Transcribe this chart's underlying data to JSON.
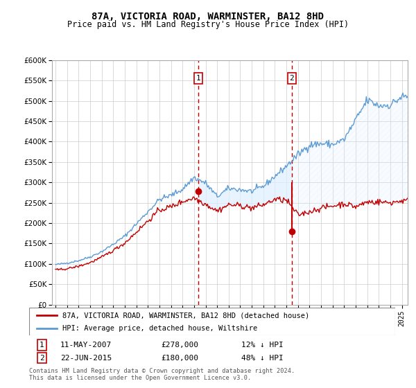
{
  "title": "87A, VICTORIA ROAD, WARMINSTER, BA12 8HD",
  "subtitle": "Price paid vs. HM Land Registry's House Price Index (HPI)",
  "hpi_label": "HPI: Average price, detached house, Wiltshire",
  "property_label": "87A, VICTORIA ROAD, WARMINSTER, BA12 8HD (detached house)",
  "annotation1": {
    "label": "1",
    "date": "11-MAY-2007",
    "price": 278000,
    "pct": "12% ↓ HPI"
  },
  "annotation2": {
    "label": "2",
    "date": "22-JUN-2015",
    "price": 180000,
    "pct": "48% ↓ HPI"
  },
  "footer": "Contains HM Land Registry data © Crown copyright and database right 2024.\nThis data is licensed under the Open Government Licence v3.0.",
  "hpi_color": "#5b9bd5",
  "property_color": "#c00000",
  "shaded_color": "#ddeeff",
  "annotation_color": "#c00000",
  "ylim": [
    0,
    600000
  ],
  "yticks": [
    0,
    50000,
    100000,
    150000,
    200000,
    250000,
    300000,
    350000,
    400000,
    450000,
    500000,
    550000,
    600000
  ],
  "sale1_year": 2007.37,
  "sale1_y": 278000,
  "sale2_year": 2015.47,
  "sale2_y": 180000,
  "xlim_start": 1994.7,
  "xlim_end": 2025.5
}
